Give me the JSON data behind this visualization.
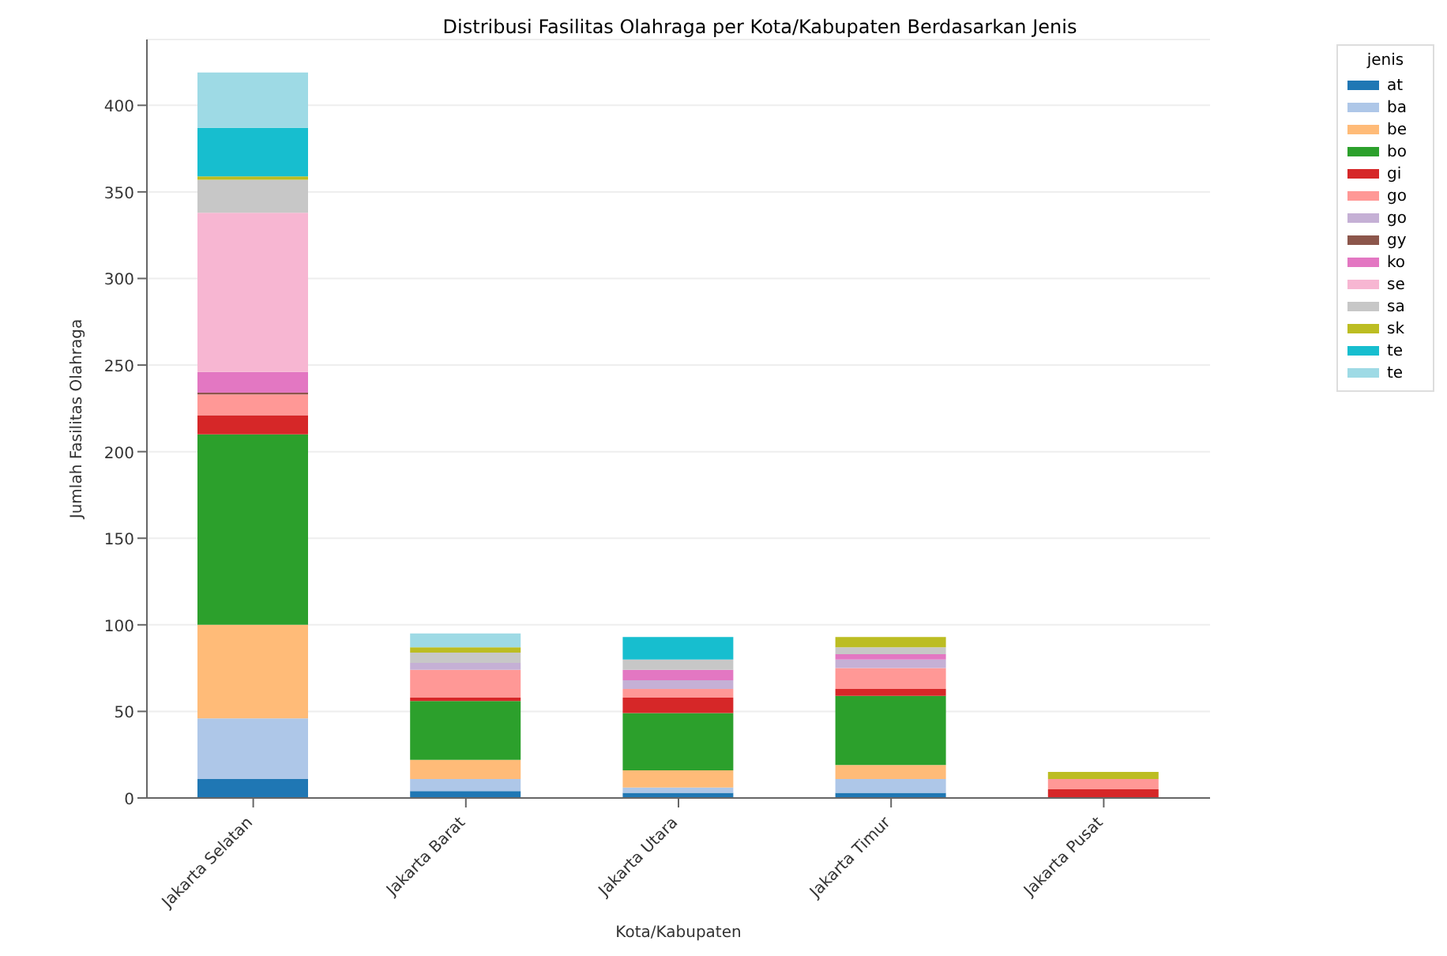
{
  "chart_data": {
    "type": "bar",
    "stacked": true,
    "title": "Distribusi Fasilitas Olahraga per Kota/Kabupaten Berdasarkan Jenis",
    "xlabel": "Kota/Kabupaten",
    "ylabel": "Jumlah Fasilitas Olahraga",
    "legend_title": "jenis",
    "legend": "top right",
    "grid": "y",
    "categories": [
      "Jakarta Selatan",
      "Jakarta Barat",
      "Jakarta Utara",
      "Jakarta Timur",
      "Jakarta Pusat"
    ],
    "ylim": [
      0,
      438
    ],
    "yticks": [
      0,
      50,
      100,
      150,
      200,
      250,
      300,
      350,
      400
    ],
    "series": [
      {
        "name": "at",
        "color": "#1f77b4",
        "values": [
          11,
          4,
          3,
          3,
          0
        ]
      },
      {
        "name": "ba",
        "color": "#aec7e8",
        "values": [
          35,
          7,
          3,
          8,
          0
        ]
      },
      {
        "name": "be",
        "color": "#ffbb78",
        "values": [
          54,
          11,
          10,
          8,
          0
        ]
      },
      {
        "name": "bo",
        "color": "#2ca02c",
        "values": [
          110,
          34,
          33,
          40,
          0
        ]
      },
      {
        "name": "gi",
        "color": "#d62728",
        "values": [
          11,
          2,
          9,
          4,
          5
        ]
      },
      {
        "name": "go",
        "color": "#ff9896",
        "values": [
          12,
          16,
          5,
          12,
          6
        ]
      },
      {
        "name": "go",
        "color": "#c5b0d5",
        "values": [
          0,
          4,
          5,
          5,
          0
        ]
      },
      {
        "name": "gy",
        "color": "#8c564b",
        "values": [
          1,
          0,
          0,
          0,
          0
        ]
      },
      {
        "name": "ko",
        "color": "#e377c2",
        "values": [
          12,
          0,
          6,
          3,
          0
        ]
      },
      {
        "name": "se",
        "color": "#f7b6d2",
        "values": [
          92,
          0,
          0,
          0,
          0
        ]
      },
      {
        "name": "sa",
        "color": "#c7c7c7",
        "values": [
          19,
          6,
          6,
          4,
          0
        ]
      },
      {
        "name": "sk",
        "color": "#bcbd22",
        "values": [
          2,
          3,
          0,
          6,
          4
        ]
      },
      {
        "name": "te",
        "color": "#17becf",
        "values": [
          28,
          0,
          13,
          0,
          0
        ]
      },
      {
        "name": "te",
        "color": "#9edae5",
        "values": [
          32,
          8,
          0,
          0,
          0
        ]
      }
    ]
  }
}
